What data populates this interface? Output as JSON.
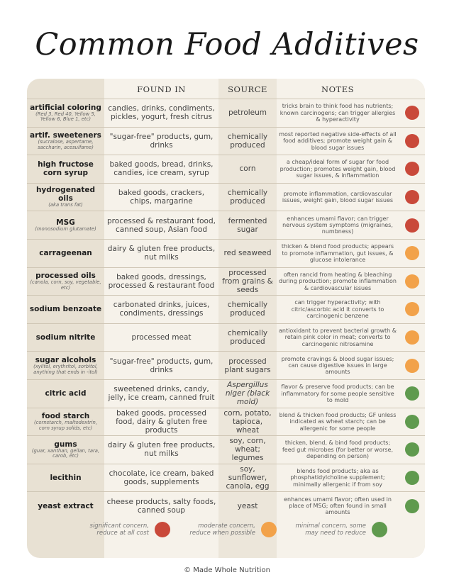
{
  "title": "Common Food Additives",
  "headers": {
    "found_in": "FOUND IN",
    "source": "SOURCE",
    "notes": "NOTES"
  },
  "colors": {
    "red": "#c9493a",
    "orange": "#f2a24a",
    "green": "#5f9a4e"
  },
  "rows": [
    {
      "name": "artificial coloring",
      "sub": "(Red 3, Red 40, Yellow 5, Yellow 6, Blue 1, etc)",
      "found": "candies, drinks, condiments, pickles, yogurt, fresh citrus",
      "source": "petroleum",
      "source_italic": false,
      "notes": "tricks brain to think food has nutrients; known carcinogens; can trigger allergies & hyperactivity",
      "level": "red"
    },
    {
      "name": "artif. sweeteners",
      "sub": "(sucralose, aspertame, saccharin, acesulfame)",
      "found": "\"sugar-free\" products, gum, drinks",
      "source": "chemically produced",
      "source_italic": false,
      "notes": "most reported negative side-effects of all food additives; promote weight gain & blood sugar issues",
      "level": "red"
    },
    {
      "name": "high fructose corn syrup",
      "sub": "",
      "found": "baked goods, bread, drinks, candies, ice cream, syrup",
      "source": "corn",
      "source_italic": false,
      "notes": "a cheap/ideal form of sugar for food production; promotes weight gain, blood sugar issues, & inflammation",
      "level": "red"
    },
    {
      "name": "hydrogenated oils",
      "sub": "(aka trans fat)",
      "found": "baked goods, crackers, chips, margarine",
      "source": "chemically produced",
      "source_italic": false,
      "notes": "promote inflammation, cardiovascular issues, weight gain, blood sugar issues",
      "level": "red"
    },
    {
      "name": "MSG",
      "sub": "(monosodium glutamate)",
      "found": "processed & restaurant food, canned soup, Asian food",
      "source": "fermented sugar",
      "source_italic": false,
      "notes": "enhances umami flavor; can trigger nervous system symptoms (migraines, numbness)",
      "level": "red"
    },
    {
      "name": "carrageenan",
      "sub": "",
      "found": "dairy & gluten free products, nut milks",
      "source": "red seaweed",
      "source_italic": false,
      "notes": "thicken & blend food products; appears to promote inflammation, gut issues, & glucose intolerance",
      "level": "orange"
    },
    {
      "name": "processed oils",
      "sub": "(canola, corn, soy, vegetable, etc)",
      "found": "baked goods, dressings, processed & restaurant food",
      "source": "processed from grains & seeds",
      "source_italic": false,
      "notes": "often rancid from heating & bleaching during production; promote inflammation & cardiovascular issues",
      "level": "orange"
    },
    {
      "name": "sodium benzoate",
      "sub": "",
      "found": "carbonated drinks, juices, condiments, dressings",
      "source": "chemically produced",
      "source_italic": false,
      "notes": "can trigger hyperactivity; with citric/ascorbic acid it converts to carcinogenic benzene",
      "level": "orange"
    },
    {
      "name": "sodium nitrite",
      "sub": "",
      "found": "processed meat",
      "source": "chemically produced",
      "source_italic": false,
      "notes": "antioxidant to prevent bacterial growth & retain pink color in meat; converts to carcinogenic nitrosamine",
      "level": "orange"
    },
    {
      "name": "sugar alcohols",
      "sub": "(xylitol, erythritol, sorbitol, anything that ends in -itol)",
      "found": "\"sugar-free\" products, gum, drinks",
      "source": "processed plant sugars",
      "source_italic": false,
      "notes": "promote cravings & blood sugar issues; can cause digestive issues in large amounts",
      "level": "orange"
    },
    {
      "name": "citric acid",
      "sub": "",
      "found": "sweetened drinks, candy, jelly, ice cream, canned fruit",
      "source": "Aspergillus niger (black mold)",
      "source_italic": true,
      "notes": "flavor & preserve food products; can be inflammatory for some people sensitive to mold",
      "level": "green"
    },
    {
      "name": "food starch",
      "sub": "(cornstarch, maltodextrin, corn syrup solids, etc)",
      "found": "baked goods, processed food, dairy & gluten free products",
      "source": "corn, potato, tapioca, wheat",
      "source_italic": false,
      "notes": "blend & thicken food products; GF unless indicated as wheat starch; can be allergenic for some people",
      "level": "green"
    },
    {
      "name": "gums",
      "sub": "(guar, xanthan, gellan, tara, carob, etc)",
      "found": "dairy & gluten free products, nut milks",
      "source": "soy, corn, wheat; legumes",
      "source_italic": false,
      "notes": "thicken, blend, & bind food products; feed gut microbes (for better or worse, depending on person)",
      "level": "green"
    },
    {
      "name": "lecithin",
      "sub": "",
      "found": "chocolate, ice cream, baked goods, supplements",
      "source": "soy, sunflower, canola, egg",
      "source_italic": false,
      "notes": "blends food products; aka as phosphatidylcholine supplement; minimally allergenic if from soy",
      "level": "green"
    },
    {
      "name": "yeast extract",
      "sub": "",
      "found": "cheese products, salty foods, canned soup",
      "source": "yeast",
      "source_italic": false,
      "notes": "enhances umami flavor; often used in place of MSG; often found in small amounts",
      "level": "green"
    }
  ],
  "legend": [
    {
      "text": "significant concern, reduce at all cost",
      "level": "red"
    },
    {
      "text": "moderate concern, reduce when possible",
      "level": "orange"
    },
    {
      "text": "minimal concern, some may need to reduce",
      "level": "green"
    }
  ],
  "footer": "© Made Whole Nutrition"
}
